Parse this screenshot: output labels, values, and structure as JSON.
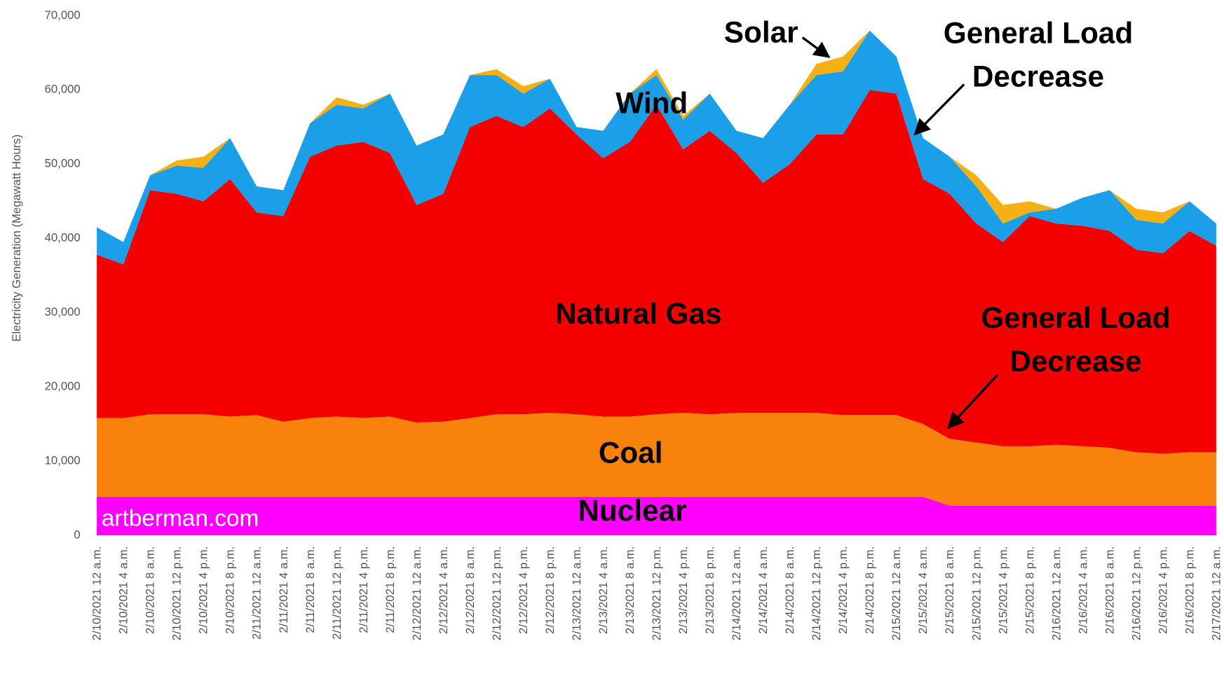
{
  "chart_data": {
    "type": "stacked-area",
    "y_label": "Electricity Generation (Megawatt Hours)",
    "categories": [
      "2/10/2021 12 a.m.",
      "2/10/2021 4 a.m.",
      "2/10/2021 8 a.m.",
      "2/10/2021 12 p.m.",
      "2/10/2021 4 p.m.",
      "2/10/2021 8 p.m.",
      "2/11/2021 12 a.m.",
      "2/11/2021 4 a.m.",
      "2/11/2021 8 a.m.",
      "2/11/2021 12 p.m.",
      "2/11/2021 4 p.m.",
      "2/11/2021 8 p.m.",
      "2/12/2021 12 a.m.",
      "2/12/2021 4 a.m.",
      "2/12/2021 8 a.m.",
      "2/12/2021 12 p.m.",
      "2/12/2021 4 p.m.",
      "2/12/2021 8 p.m.",
      "2/13/2021 12 a.m.",
      "2/13/2021 4 a.m.",
      "2/13/2021 8 a.m.",
      "2/13/2021 12 p.m.",
      "2/13/2021 4 p.m.",
      "2/13/2021 8 p.m.",
      "2/14/2021 12 a.m.",
      "2/14/2021 4 a.m.",
      "2/14/2021 8 a.m.",
      "2/14/2021 12 p.m.",
      "2/14/2021 4 p.m.",
      "2/14/2021 8 p.m.",
      "2/15/2021 12 a.m.",
      "2/15/2021 4 a.m.",
      "2/15/2021 8 a.m.",
      "2/15/2021 12 p.m.",
      "2/15/2021 4 p.m.",
      "2/15/2021 8 p.m.",
      "2/16/2021 12 a.m.",
      "2/16/2021 4 a.m.",
      "2/16/2021 8 a.m.",
      "2/16/2021 12 p.m.",
      "2/16/2021 4 p.m.",
      "2/16/2021 8 p.m.",
      "2/17/2021 12 a.m."
    ],
    "series": [
      {
        "name": "Nuclear",
        "color": "#ff00ff",
        "values": [
          5200,
          5200,
          5200,
          5200,
          5200,
          5200,
          5200,
          5200,
          5200,
          5200,
          5200,
          5200,
          5200,
          5200,
          5200,
          5200,
          5200,
          5200,
          5200,
          5200,
          5200,
          5200,
          5200,
          5200,
          5200,
          5200,
          5200,
          5200,
          5200,
          5200,
          5200,
          5200,
          4000,
          4000,
          4000,
          4000,
          4000,
          4000,
          4000,
          4000,
          4000,
          4000,
          4000
        ]
      },
      {
        "name": "Coal",
        "color": "#f8820c",
        "values": [
          10600,
          10600,
          11100,
          11100,
          11100,
          10800,
          11000,
          10100,
          10600,
          10800,
          10600,
          10800,
          10000,
          10100,
          10600,
          11100,
          11100,
          11300,
          11100,
          10800,
          10800,
          11100,
          11300,
          11100,
          11300,
          11300,
          11300,
          11300,
          11000,
          11000,
          11000,
          9800,
          9000,
          8500,
          8000,
          8000,
          8200,
          8000,
          7800,
          7200,
          7000,
          7200,
          7200
        ]
      },
      {
        "name": "Natural Gas",
        "color": "#f40000",
        "values": [
          22000,
          20700,
          30200,
          29700,
          28700,
          32000,
          27300,
          27700,
          35200,
          36500,
          37200,
          35500,
          29300,
          30700,
          39200,
          40200,
          38700,
          41000,
          37700,
          34800,
          37000,
          41700,
          35500,
          38200,
          35000,
          31000,
          33500,
          37500,
          37800,
          43800,
          43300,
          33000,
          33000,
          29500,
          27500,
          31000,
          29800,
          29700,
          29200,
          27300,
          27000,
          29800,
          27800
        ]
      },
      {
        "name": "Wind",
        "color": "#1a9fe8",
        "values": [
          3700,
          3000,
          2000,
          3800,
          4500,
          5500,
          3500,
          3500,
          4500,
          5500,
          4500,
          8000,
          8000,
          8000,
          7000,
          5500,
          4500,
          4000,
          1000,
          3700,
          6500,
          4000,
          4000,
          5000,
          3000,
          6000,
          8000,
          8000,
          8500,
          8000,
          5000,
          5500,
          5000,
          5000,
          2500,
          500,
          2000,
          3800,
          5500,
          4000,
          4000,
          4000,
          3000
        ]
      },
      {
        "name": "Solar",
        "color": "#f5b014",
        "values": [
          0,
          0,
          0,
          700,
          1500,
          0,
          0,
          0,
          0,
          1000,
          500,
          0,
          0,
          0,
          0,
          800,
          1000,
          0,
          0,
          0,
          0,
          800,
          500,
          0,
          0,
          0,
          0,
          1500,
          2000,
          0,
          0,
          0,
          0,
          1500,
          2500,
          1500,
          0,
          0,
          0,
          1500,
          1500,
          0,
          0
        ]
      }
    ],
    "ylim": [
      0,
      70000
    ],
    "yticks": [
      0,
      {
        "value": 10000,
        "label": "10,000"
      },
      {
        "value": 20000,
        "label": "20,000"
      },
      {
        "value": 30000,
        "label": "30,000"
      },
      {
        "value": 40000,
        "label": "40,000"
      },
      {
        "value": 50000,
        "label": "50,000"
      },
      {
        "value": 60000,
        "label": "60,000"
      },
      {
        "value": 70000,
        "label": "70,000"
      }
    ],
    "annotations": [
      "General Load Decrease",
      "General Load Decrease"
    ],
    "watermark": "artberman.com"
  }
}
